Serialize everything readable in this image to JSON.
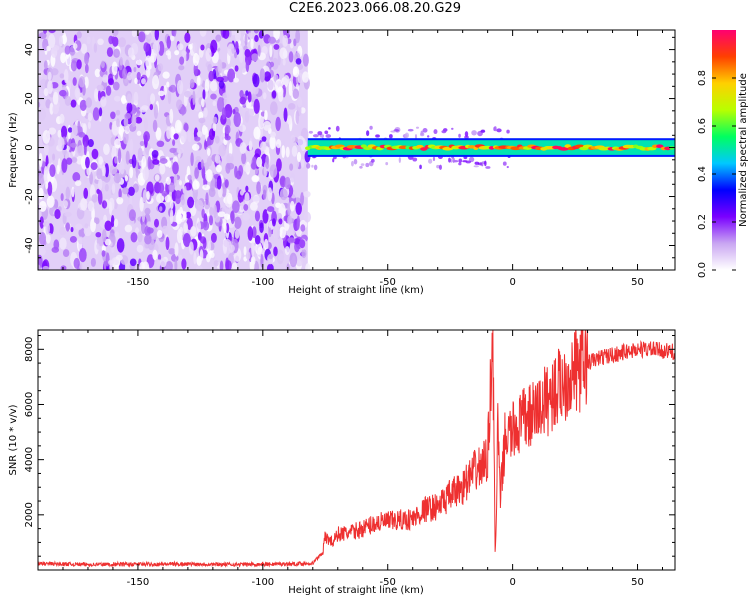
{
  "title": "C2E6.2023.066.08.20.G29",
  "chart_data": [
    {
      "type": "heatmap",
      "title": "C2E6.2023.066.08.20.G29",
      "xlabel": "Height of straight line (km)",
      "ylabel": "Frequency (Hz)",
      "xlim": [
        -190,
        65
      ],
      "ylim": [
        -50,
        48
      ],
      "x_ticks": [
        -150,
        -100,
        -50,
        0,
        50
      ],
      "y_ticks": [
        -40,
        -20,
        0,
        20,
        40
      ],
      "colorbar": {
        "label": "Normalized spectral amplitude",
        "range": [
          0,
          1
        ],
        "ticks": [
          0.0,
          0.2,
          0.4,
          0.6,
          0.8
        ],
        "colormap": [
          "#ffffff",
          "#c9a6f2",
          "#7a00ff",
          "#0000ff",
          "#00c8ff",
          "#00ff60",
          "#b8ff00",
          "#ffd000",
          "#ff4000",
          "#ff0070"
        ]
      },
      "description_regions": [
        {
          "x_range": [
            -190,
            -82
          ],
          "frequency_range": [
            -50,
            48
          ],
          "amplitude_range": [
            0.0,
            0.25
          ],
          "pattern": "noise"
        },
        {
          "x_range": [
            -82,
            65
          ],
          "frequency_center": 0,
          "frequency_halfwidth": 3,
          "amplitude_range": [
            0.6,
            1.0
          ],
          "pattern": "narrow signal band"
        }
      ]
    },
    {
      "type": "line",
      "xlabel": "Height of straight line (km)",
      "ylabel": "SNR (10 * v/v)",
      "xlim": [
        -190,
        65
      ],
      "ylim": [
        0,
        8700
      ],
      "x_ticks": [
        -150,
        -100,
        -50,
        0,
        50
      ],
      "y_ticks": [
        2000,
        4000,
        6000,
        8000
      ],
      "color": "#ee3030",
      "series": [
        {
          "x": [
            -190,
            -170,
            -150,
            -130,
            -110,
            -90,
            -80,
            -76,
            -75,
            -72,
            -70,
            -65,
            -60,
            -55,
            -50,
            -45,
            -40,
            -35,
            -30,
            -25,
            -20,
            -15,
            -12,
            -10,
            -8,
            -7.5,
            -7,
            -6.5,
            -6,
            -5,
            -3,
            0,
            2,
            5,
            8,
            10,
            15,
            20,
            25,
            30,
            35,
            40,
            45,
            50,
            55,
            60,
            65
          ],
          "y": [
            230,
            200,
            210,
            220,
            200,
            220,
            240,
            650,
            1200,
            1000,
            1300,
            1350,
            1500,
            1700,
            1750,
            1800,
            1850,
            2200,
            2300,
            2700,
            3000,
            3600,
            3800,
            4100,
            8700,
            5000,
            600,
            1800,
            5500,
            2500,
            4800,
            5000,
            5200,
            5500,
            5600,
            5800,
            6300,
            6800,
            7200,
            7500,
            7700,
            7800,
            7900,
            8000,
            8000,
            7950,
            7900
          ]
        }
      ]
    }
  ]
}
